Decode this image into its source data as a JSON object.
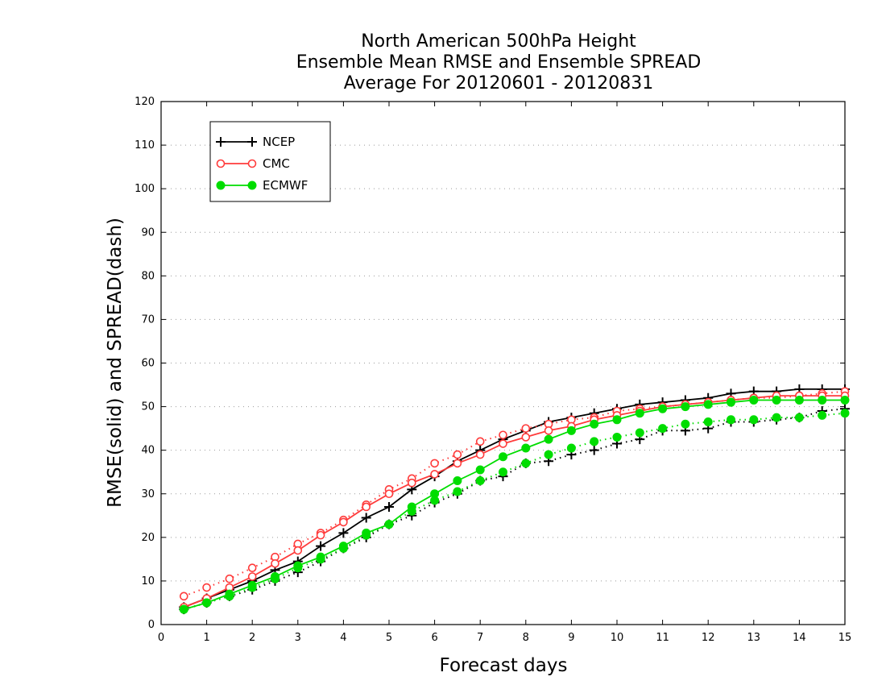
{
  "chart_data": {
    "type": "line",
    "title_lines": [
      "North American 500hPa Height",
      "Ensemble Mean RMSE and Ensemble SPREAD",
      "Average For 20120601 - 20120831"
    ],
    "xlabel": "Forecast days",
    "ylabel": "RMSE(solid) and SPREAD(dash)",
    "xlim": [
      0,
      15
    ],
    "ylim": [
      0,
      120
    ],
    "x_ticks": [
      "0",
      "1",
      "2",
      "3",
      "4",
      "5",
      "6",
      "7",
      "8",
      "9",
      "10",
      "11",
      "12",
      "13",
      "14",
      "15"
    ],
    "y_ticks": [
      "0",
      "10",
      "20",
      "30",
      "40",
      "50",
      "60",
      "70",
      "80",
      "90",
      "100",
      "110",
      "120"
    ],
    "grid": "horizontal dotted",
    "legend_position": "top-left",
    "x": [
      0.5,
      1,
      1.5,
      2,
      2.5,
      3,
      3.5,
      4,
      4.5,
      5,
      5.5,
      6,
      6.5,
      7,
      7.5,
      8,
      8.5,
      9,
      9.5,
      10,
      10.5,
      11,
      11.5,
      12,
      12.5,
      13,
      13.5,
      14,
      14.5,
      15
    ],
    "series": [
      {
        "name": "NCEP",
        "color": "#000000",
        "marker": "plus",
        "rmse": [
          4,
          6,
          8,
          10,
          12.5,
          14.5,
          18,
          21,
          24.5,
          27,
          31,
          34,
          37.5,
          40,
          42.5,
          44.5,
          46.5,
          47.5,
          48.5,
          49.5,
          50.5,
          51,
          51.5,
          52,
          53,
          53.5,
          53.5,
          54,
          54,
          54
        ],
        "spread": [
          3.5,
          5,
          6.5,
          8,
          10,
          12,
          14.5,
          17.5,
          20,
          23,
          25,
          28,
          30,
          33,
          34,
          37,
          37.5,
          39,
          40,
          41.5,
          42.5,
          44.5,
          44.5,
          45,
          46.5,
          46.5,
          47,
          47.5,
          49,
          49.5
        ]
      },
      {
        "name": "CMC",
        "color": "#ff3b3b",
        "marker": "circle",
        "rmse": [
          4,
          6,
          8.5,
          11,
          14,
          17,
          20.5,
          23.5,
          27,
          30,
          32.5,
          34.5,
          37,
          39,
          41.5,
          43,
          44.5,
          45.5,
          47,
          48,
          49,
          50,
          50.5,
          51,
          51.5,
          52,
          52.5,
          52.5,
          52.5,
          52.5
        ],
        "spread": [
          6.5,
          8.5,
          10.5,
          13,
          15.5,
          18.5,
          21,
          24,
          27.5,
          31,
          33.5,
          37,
          39,
          42,
          43.5,
          45,
          46,
          47,
          47.5,
          49,
          49.5,
          50,
          50.5,
          51,
          51.5,
          52,
          52,
          52.5,
          53,
          53.5
        ]
      },
      {
        "name": "ECMWF",
        "color": "#00dd00",
        "marker": "dot",
        "rmse": [
          3.5,
          5,
          7,
          9,
          11,
          13.5,
          15.5,
          18,
          21,
          23,
          27,
          30,
          33,
          35.5,
          38.5,
          40.5,
          42.5,
          44.5,
          46,
          47,
          48.5,
          49.5,
          50,
          50.5,
          51,
          51.5,
          51.5,
          51.5,
          51.5,
          51.5
        ],
        "spread": [
          3.5,
          5,
          6.5,
          8.5,
          10.5,
          13,
          15,
          17.5,
          20.5,
          23,
          26,
          28.5,
          30.5,
          33,
          35,
          37,
          39,
          40.5,
          42,
          43,
          44,
          45,
          46,
          46.5,
          47,
          47,
          47.5,
          47.5,
          48,
          48.5
        ]
      }
    ]
  }
}
